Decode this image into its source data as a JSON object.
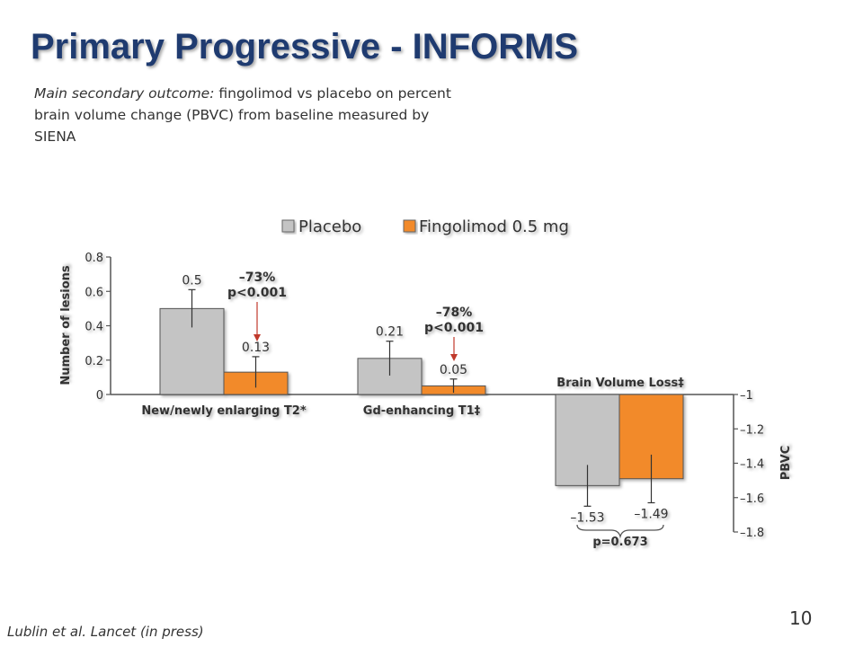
{
  "slide": {
    "title": "Primary Progressive - INFORMS",
    "subtitle_lead": "Main secondary outcome:",
    "subtitle_rest": " fingolimod vs placebo on percent brain volume change (PBVC) from baseline measured by SIENA",
    "citation": "Lublin et al. Lancet (in press)",
    "page_number": "10"
  },
  "colors": {
    "placebo": "#c4c4c4",
    "fingolimod": "#f28a2a",
    "arrow": "#c0392b"
  },
  "chart_data": [
    {
      "type": "bar",
      "ylabel": "Number of lesions",
      "ylim": [
        0,
        0.8
      ],
      "yticks": [
        "0",
        "0.2",
        "0.4",
        "0.6",
        "0.8"
      ],
      "categories": [
        "New/newly enlarging T2*",
        "Gd-enhancing T1‡"
      ],
      "series": [
        {
          "name": "Placebo",
          "values": [
            0.5,
            0.21
          ],
          "labels": [
            "0.5",
            "0.21"
          ],
          "err": [
            0.11,
            0.1
          ]
        },
        {
          "name": "Fingolimod 0.5 mg",
          "values": [
            0.13,
            0.05
          ],
          "labels": [
            "0.13",
            "0.05"
          ],
          "err": [
            0.09,
            0.04
          ]
        }
      ],
      "annotations": [
        {
          "line1": "–73%",
          "line2": "p<0.001"
        },
        {
          "line1": "–78%",
          "line2": "p<0.001"
        }
      ],
      "legend": "top"
    },
    {
      "type": "bar",
      "ylabel": "PBVC",
      "ylim": [
        -1.8,
        -1
      ],
      "yticks": [
        "–1",
        "–1.2",
        "–1.4",
        "–1.6",
        "–1.8"
      ],
      "categories": [
        "Brain Volume Loss‡"
      ],
      "series": [
        {
          "name": "Placebo",
          "values": [
            -1.53
          ],
          "labels": [
            "–1.53"
          ],
          "err": [
            0.12
          ]
        },
        {
          "name": "Fingolimod 0.5 mg",
          "values": [
            -1.49
          ],
          "labels": [
            "–1.49"
          ],
          "err": [
            0.14
          ]
        }
      ],
      "annotation": "p=0.673"
    }
  ]
}
